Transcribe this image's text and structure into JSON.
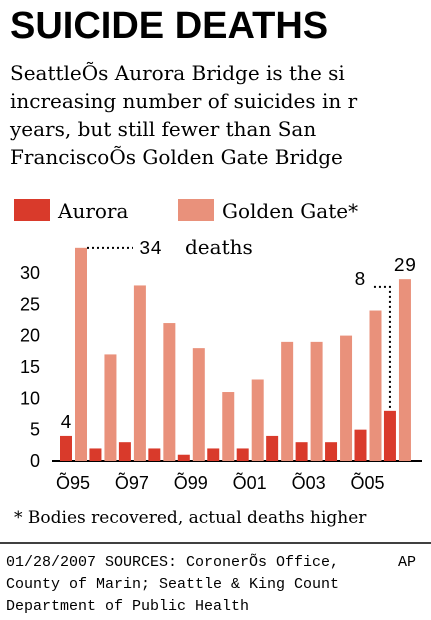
{
  "chart_data": {
    "type": "bar",
    "title": "SUICIDE DEATHS",
    "subtitle_lines": [
      "SeattleÕs Aurora Bridge is the si",
      "increasing number of suicides in r",
      "years, but still fewer than San",
      "FranciscoÕs Golden Gate Bridge"
    ],
    "categories": [
      "Õ95",
      null,
      "Õ97",
      null,
      "Õ99",
      null,
      "Õ01",
      null,
      "Õ03",
      null,
      "Õ05",
      null
    ],
    "series": [
      {
        "name": "Aurora",
        "color": "#d93a2b",
        "values": [
          4,
          2,
          3,
          2,
          1,
          2,
          2,
          4,
          3,
          3,
          5,
          8
        ],
        "value_labels": [
          "4",
          null,
          null,
          null,
          null,
          null,
          null,
          null,
          null,
          null,
          null,
          "8"
        ]
      },
      {
        "name": "Golden Gate*",
        "color": "#e9917b",
        "values": [
          34,
          17,
          28,
          22,
          18,
          11,
          13,
          19,
          19,
          20,
          24,
          29
        ],
        "value_labels": [
          "34",
          null,
          null,
          null,
          null,
          null,
          null,
          null,
          null,
          null,
          null,
          "29"
        ]
      }
    ],
    "annotation": "deaths",
    "ylim": [
      0,
      35
    ],
    "yticks": [
      0,
      5,
      10,
      15,
      20,
      25,
      30
    ],
    "grid": false,
    "footnote": "* Bodies recovered, actual deaths higher",
    "source_lines": [
      "01/28/2007   SOURCES: CoronerÕs Office,",
      "County of Marin; Seattle & King Count",
      "Department of Public Health"
    ],
    "credit": "AP"
  }
}
